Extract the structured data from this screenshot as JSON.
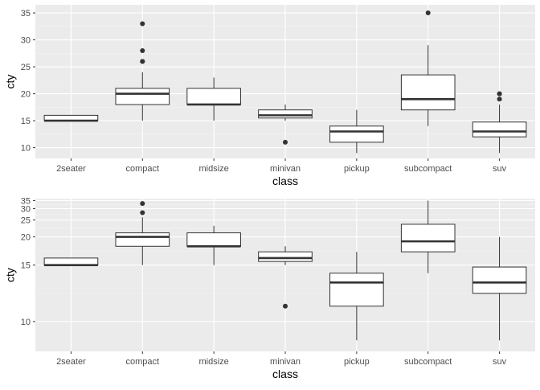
{
  "chart_data": [
    {
      "type": "boxplot",
      "xlabel": "class",
      "ylabel": "cty",
      "y_scale": "linear",
      "ylim": [
        8.0,
        36.5
      ],
      "y_ticks": [
        10,
        15,
        20,
        25,
        30,
        35
      ],
      "grid": true,
      "categories": [
        "2seater",
        "compact",
        "midsize",
        "minivan",
        "pickup",
        "subcompact",
        "suv"
      ],
      "boxes": [
        {
          "low": 15,
          "q1": 15,
          "median": 15,
          "q3": 16,
          "high": 16,
          "outliers": []
        },
        {
          "low": 15,
          "q1": 18,
          "median": 20,
          "q3": 21,
          "high": 24,
          "outliers": [
            26,
            26,
            28,
            33
          ]
        },
        {
          "low": 15,
          "q1": 18,
          "median": 18,
          "q3": 21,
          "high": 23,
          "outliers": []
        },
        {
          "low": 15,
          "q1": 15.5,
          "median": 16,
          "q3": 17,
          "high": 18,
          "outliers": [
            11
          ]
        },
        {
          "low": 9,
          "q1": 11,
          "median": 13,
          "q3": 14,
          "high": 17,
          "outliers": []
        },
        {
          "low": 14,
          "q1": 17,
          "median": 19,
          "q3": 23.5,
          "high": 29,
          "outliers": [
            35
          ]
        },
        {
          "low": 9,
          "q1": 12,
          "median": 13,
          "q3": 14.75,
          "high": 18,
          "outliers": [
            19,
            20,
            20
          ]
        }
      ]
    },
    {
      "type": "boxplot",
      "xlabel": "class",
      "ylabel": "cty",
      "y_scale": "reciprocal",
      "ylim": [
        8.5,
        36.5
      ],
      "y_ticks": [
        10,
        15,
        20,
        25,
        30,
        35
      ],
      "grid": true,
      "categories": [
        "2seater",
        "compact",
        "midsize",
        "minivan",
        "pickup",
        "subcompact",
        "suv"
      ],
      "boxes": [
        {
          "low": 15,
          "q1": 15,
          "median": 15,
          "q3": 16,
          "high": 16,
          "outliers": []
        },
        {
          "low": 15,
          "q1": 18,
          "median": 20,
          "q3": 21,
          "high": 26,
          "outliers": [
            28,
            33
          ]
        },
        {
          "low": 15,
          "q1": 18,
          "median": 18,
          "q3": 21,
          "high": 23,
          "outliers": []
        },
        {
          "low": 15,
          "q1": 15.5,
          "median": 16,
          "q3": 17,
          "high": 18,
          "outliers": [
            11
          ]
        },
        {
          "low": 9,
          "q1": 11,
          "median": 13,
          "q3": 14,
          "high": 17,
          "outliers": []
        },
        {
          "low": 14,
          "q1": 17,
          "median": 19,
          "q3": 23.5,
          "high": 35,
          "outliers": []
        },
        {
          "low": 9,
          "q1": 12,
          "median": 13,
          "q3": 14.75,
          "high": 20,
          "outliers": []
        }
      ]
    }
  ],
  "colors": {
    "panel_bg": "#ebebeb",
    "grid_major": "#ffffff",
    "grid_minor": "#f3f3f3",
    "box_fill": "#ffffff",
    "box_line": "#333333",
    "tick_text": "#4d4d4d",
    "axis_title": "#000000"
  }
}
